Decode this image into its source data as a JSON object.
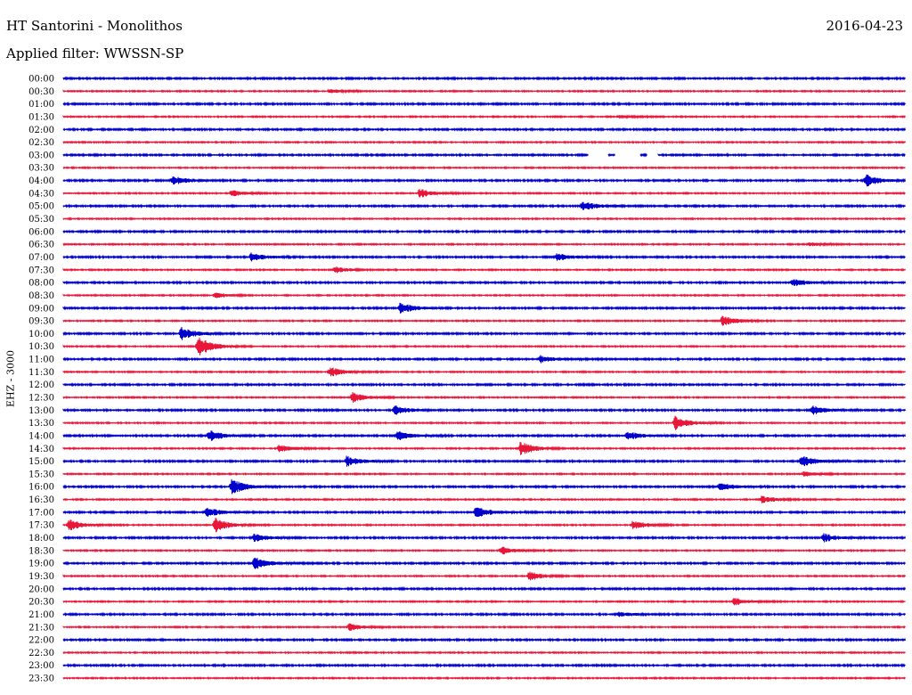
{
  "header": {
    "station": "HT Santorini - Monolithos",
    "date": "2016-04-23",
    "filter": "Applied filter: WWSSN-SP"
  },
  "chart_data": {
    "type": "line",
    "title": "HT Santorini - Monolithos",
    "ylabel": "EHZ - 3000",
    "tick_labels": [
      "00:00",
      "00:30",
      "01:00",
      "01:30",
      "02:00",
      "02:30",
      "03:00",
      "03:30",
      "04:00",
      "04:30",
      "05:00",
      "05:30",
      "06:00",
      "06:30",
      "07:00",
      "07:30",
      "08:00",
      "08:30",
      "09:00",
      "09:30",
      "10:00",
      "10:30",
      "11:00",
      "11:30",
      "12:00",
      "12:30",
      "13:00",
      "13:30",
      "14:00",
      "14:30",
      "15:00",
      "15:30",
      "16:00",
      "16:30",
      "17:00",
      "17:30",
      "18:00",
      "18:30",
      "19:00",
      "19:30",
      "20:00",
      "20:30",
      "21:00",
      "21:30",
      "22:00",
      "22:30",
      "23:00",
      "23:30"
    ],
    "x_range_minutes": [
      0,
      30
    ],
    "series_colors": [
      "#0000cc",
      "#e8173a"
    ],
    "grid": false,
    "data_gap": {
      "trace": "03:00",
      "start_min": 18.7,
      "end_min": 21.2
    },
    "events": [
      {
        "trace": "00:30",
        "min": 9.5,
        "amp": 0.5
      },
      {
        "trace": "01:30",
        "min": 19.8,
        "amp": 0.35
      },
      {
        "trace": "04:00",
        "min": 3.9,
        "amp": 1.0
      },
      {
        "trace": "04:00",
        "min": 28.6,
        "amp": 1.3
      },
      {
        "trace": "04:30",
        "min": 6.0,
        "amp": 0.7
      },
      {
        "trace": "04:30",
        "min": 12.7,
        "amp": 1.0
      },
      {
        "trace": "05:00",
        "min": 18.5,
        "amp": 1.0
      },
      {
        "trace": "06:30",
        "min": 26.6,
        "amp": 0.4
      },
      {
        "trace": "07:00",
        "min": 6.7,
        "amp": 0.9
      },
      {
        "trace": "07:00",
        "min": 17.6,
        "amp": 1.0
      },
      {
        "trace": "07:30",
        "min": 9.7,
        "amp": 0.7
      },
      {
        "trace": "08:00",
        "min": 26.0,
        "amp": 0.8
      },
      {
        "trace": "08:30",
        "min": 5.4,
        "amp": 0.6
      },
      {
        "trace": "09:00",
        "min": 12.0,
        "amp": 1.2
      },
      {
        "trace": "09:30",
        "min": 23.5,
        "amp": 1.2
      },
      {
        "trace": "10:00",
        "min": 4.2,
        "amp": 1.4
      },
      {
        "trace": "10:30",
        "min": 4.8,
        "amp": 2.3
      },
      {
        "trace": "11:00",
        "min": 17.0,
        "amp": 0.8
      },
      {
        "trace": "11:30",
        "min": 9.5,
        "amp": 1.1
      },
      {
        "trace": "12:30",
        "min": 10.3,
        "amp": 1.2
      },
      {
        "trace": "13:00",
        "min": 11.8,
        "amp": 1.0
      },
      {
        "trace": "13:00",
        "min": 26.7,
        "amp": 1.0
      },
      {
        "trace": "13:30",
        "min": 21.8,
        "amp": 1.6
      },
      {
        "trace": "14:00",
        "min": 5.2,
        "amp": 1.3
      },
      {
        "trace": "14:00",
        "min": 11.9,
        "amp": 1.1
      },
      {
        "trace": "14:00",
        "min": 20.1,
        "amp": 0.9
      },
      {
        "trace": "14:30",
        "min": 7.7,
        "amp": 0.9
      },
      {
        "trace": "14:30",
        "min": 16.3,
        "amp": 1.6
      },
      {
        "trace": "15:00",
        "min": 10.1,
        "amp": 1.1
      },
      {
        "trace": "15:00",
        "min": 26.3,
        "amp": 1.3
      },
      {
        "trace": "15:30",
        "min": 26.4,
        "amp": 0.6
      },
      {
        "trace": "16:00",
        "min": 6.0,
        "amp": 1.8
      },
      {
        "trace": "16:00",
        "min": 23.4,
        "amp": 0.9
      },
      {
        "trace": "16:30",
        "min": 24.9,
        "amp": 0.8
      },
      {
        "trace": "17:00",
        "min": 5.1,
        "amp": 1.1
      },
      {
        "trace": "17:00",
        "min": 14.7,
        "amp": 1.2
      },
      {
        "trace": "17:30",
        "min": 0.2,
        "amp": 1.2
      },
      {
        "trace": "17:30",
        "min": 5.4,
        "amp": 1.6
      },
      {
        "trace": "17:30",
        "min": 20.3,
        "amp": 1.0
      },
      {
        "trace": "18:00",
        "min": 6.8,
        "amp": 0.9
      },
      {
        "trace": "18:00",
        "min": 27.1,
        "amp": 0.9
      },
      {
        "trace": "18:30",
        "min": 15.6,
        "amp": 0.9
      },
      {
        "trace": "19:00",
        "min": 6.8,
        "amp": 1.4
      },
      {
        "trace": "19:30",
        "min": 16.6,
        "amp": 1.0
      },
      {
        "trace": "20:30",
        "min": 23.9,
        "amp": 0.8
      },
      {
        "trace": "21:00",
        "min": 19.8,
        "amp": 0.5
      },
      {
        "trace": "21:30",
        "min": 10.2,
        "amp": 0.8
      }
    ]
  }
}
